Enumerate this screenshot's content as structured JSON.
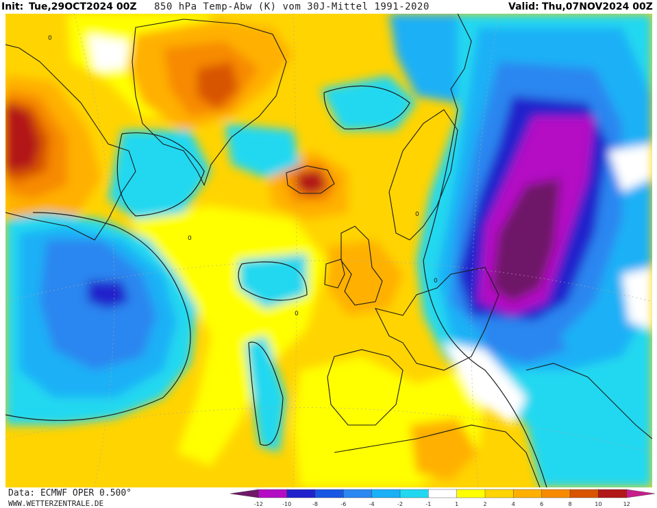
{
  "header": {
    "init_label": "Init:",
    "init_value": "Tue,29OCT2024 00Z",
    "title": "850 hPa Temp-Abw (K) vom 30J-Mittel 1991-2020",
    "valid_label": "Valid:",
    "valid_value": "Thu,07NOV2024 00Z"
  },
  "footer": {
    "source": "Data: ECMWF OPER 0.500°",
    "website": "WWW.WETTERZENTRALE.DE"
  },
  "legend": {
    "ticks": [
      "-12",
      "-10",
      "-8",
      "-6",
      "-4",
      "-2",
      "-1",
      "1",
      "2",
      "4",
      "6",
      "8",
      "10",
      "12"
    ],
    "colors": [
      "#6e1868",
      "#b40cc4",
      "#2222cc",
      "#1a56e4",
      "#2a86f0",
      "#1ab0f6",
      "#22d8f0",
      "#ffffff",
      "#ffff00",
      "#ffd400",
      "#ffb000",
      "#f78a00",
      "#d85400",
      "#b21818",
      "#c81e8c"
    ]
  },
  "map": {
    "colors": {
      "ocean_warm": "#ffd400",
      "cold_1": "#22d8f0",
      "cold_2": "#1ab0f6",
      "cold_3": "#2a86f0",
      "cold_4": "#2222cc",
      "cold_5": "#b40cc4",
      "cold_6": "#6e1868",
      "warm_1": "#ffff00",
      "warm_2": "#ffb000",
      "warm_3": "#f78a00",
      "warm_4": "#d85400",
      "warm_5": "#b21818",
      "neutral": "#ffffff",
      "outline": "#1a1a1a"
    },
    "contour_labels": [
      "0"
    ]
  }
}
